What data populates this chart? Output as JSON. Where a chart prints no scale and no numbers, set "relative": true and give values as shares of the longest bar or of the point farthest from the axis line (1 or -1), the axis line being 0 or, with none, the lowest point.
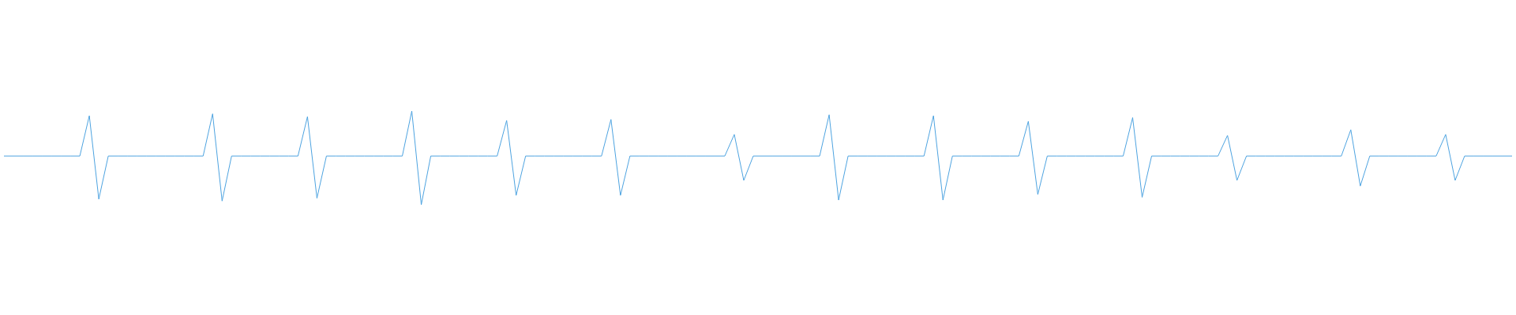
{
  "chart_data": {
    "type": "line",
    "relative": true,
    "color": "#4da3e0",
    "marker": "none",
    "legend": false,
    "tick_labels": false,
    "categories": [
      null,
      null,
      null,
      null,
      null,
      null,
      null,
      null,
      null,
      null,
      null,
      null,
      null,
      null,
      null,
      null,
      null,
      null,
      null,
      null,
      null,
      null,
      null,
      null,
      null,
      null,
      null,
      null,
      null,
      null,
      null,
      null,
      null,
      null,
      null,
      null,
      null,
      null,
      null,
      null,
      null,
      null,
      null,
      null,
      null,
      null,
      null,
      null,
      null,
      null,
      null,
      null,
      null,
      null,
      null,
      null,
      null,
      null,
      null,
      null,
      null,
      null,
      null,
      null,
      null,
      null,
      null,
      null,
      null,
      null,
      null,
      null,
      null,
      null,
      null,
      null,
      null,
      null,
      null,
      null,
      null,
      null,
      null,
      null,
      null,
      null,
      null,
      null,
      null,
      null,
      null,
      null,
      null,
      null,
      null,
      null,
      null,
      null,
      null,
      null,
      null,
      null,
      null,
      null,
      null,
      null,
      null,
      null,
      null,
      null,
      null,
      null,
      null,
      null,
      null,
      null,
      null,
      null,
      null,
      null,
      null,
      null,
      null,
      null,
      null,
      null,
      null,
      null,
      null,
      null,
      null,
      null,
      null,
      null,
      null,
      null,
      null,
      null,
      null,
      null,
      null,
      null,
      null,
      null,
      null,
      null,
      null,
      null,
      null,
      null,
      null,
      null,
      null,
      null,
      null,
      null,
      null,
      null,
      null,
      null
    ],
    "values": [
      0.52,
      0.52,
      0.52,
      0.52,
      0.52,
      0.52,
      0.52,
      0.52,
      0.52,
      0.95,
      0.06,
      0.52,
      0.52,
      0.52,
      0.52,
      0.52,
      0.52,
      0.52,
      0.52,
      0.52,
      0.52,
      0.52,
      0.97,
      0.04,
      0.52,
      0.52,
      0.52,
      0.52,
      0.52,
      0.52,
      0.52,
      0.52,
      0.94,
      0.07,
      0.52,
      0.52,
      0.52,
      0.52,
      0.52,
      0.52,
      0.52,
      0.52,
      0.52,
      1,
      0,
      0.52,
      0.52,
      0.52,
      0.52,
      0.52,
      0.52,
      0.52,
      0.52,
      0.9,
      0.1,
      0.52,
      0.52,
      0.52,
      0.52,
      0.52,
      0.52,
      0.52,
      0.52,
      0.52,
      0.91,
      0.1,
      0.52,
      0.52,
      0.52,
      0.52,
      0.52,
      0.52,
      0.52,
      0.52,
      0.52,
      0.52,
      0.52,
      0.75,
      0.26,
      0.52,
      0.52,
      0.52,
      0.52,
      0.52,
      0.52,
      0.52,
      0.52,
      0.96,
      0.05,
      0.52,
      0.52,
      0.52,
      0.52,
      0.52,
      0.52,
      0.52,
      0.52,
      0.52,
      0.95,
      0.05,
      0.52,
      0.52,
      0.52,
      0.52,
      0.52,
      0.52,
      0.52,
      0.52,
      0.89,
      0.11,
      0.52,
      0.52,
      0.52,
      0.52,
      0.52,
      0.52,
      0.52,
      0.52,
      0.52,
      0.93,
      0.08,
      0.52,
      0.52,
      0.52,
      0.52,
      0.52,
      0.52,
      0.52,
      0.52,
      0.74,
      0.26,
      0.52,
      0.52,
      0.52,
      0.52,
      0.52,
      0.52,
      0.52,
      0.52,
      0.52,
      0.52,
      0.52,
      0.8,
      0.2,
      0.52,
      0.52,
      0.52,
      0.52,
      0.52,
      0.52,
      0.52,
      0.52,
      0.75,
      0.26,
      0.52,
      0.52,
      0.52,
      0.52,
      0.52,
      0.52
    ]
  }
}
